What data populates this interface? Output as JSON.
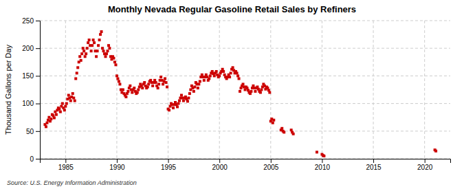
{
  "chart_data": {
    "type": "scatter",
    "title": "Monthly Nevada Regular Gasoline Retail Sales by Refiners",
    "ylabel": "Thousand Gallons per Day",
    "annotations": [
      "Source: U.S. Energy Information Administration"
    ],
    "color": "#cc0000",
    "marker": "square",
    "grid": true,
    "xlim": [
      1982.5,
      2022.5
    ],
    "ylim": [
      0,
      250
    ],
    "xticks": [
      1985,
      1990,
      1995,
      2000,
      2005,
      2010,
      2015,
      2020
    ],
    "yticks": [
      0,
      50,
      100,
      150,
      200,
      250
    ],
    "x": [
      1983.0,
      1983.1,
      1983.2,
      1983.3,
      1983.4,
      1983.5,
      1983.6,
      1983.7,
      1983.8,
      1983.9,
      1984.0,
      1984.1,
      1984.2,
      1984.3,
      1984.4,
      1984.5,
      1984.6,
      1984.7,
      1984.8,
      1984.9,
      1985.0,
      1985.1,
      1985.2,
      1985.3,
      1985.4,
      1985.5,
      1985.6,
      1985.7,
      1985.8,
      1985.9,
      1986.0,
      1986.1,
      1986.2,
      1986.3,
      1986.4,
      1986.5,
      1986.6,
      1986.7,
      1986.8,
      1986.9,
      1987.0,
      1987.1,
      1987.2,
      1987.3,
      1987.4,
      1987.5,
      1987.6,
      1987.7,
      1987.8,
      1987.9,
      1988.0,
      1988.1,
      1988.2,
      1988.3,
      1988.4,
      1988.5,
      1988.6,
      1988.7,
      1988.8,
      1988.9,
      1989.0,
      1989.1,
      1989.2,
      1989.3,
      1989.4,
      1989.5,
      1989.6,
      1989.7,
      1989.8,
      1989.9,
      1990.0,
      1990.1,
      1990.2,
      1990.3,
      1990.4,
      1990.5,
      1990.6,
      1990.7,
      1990.8,
      1990.9,
      1991.0,
      1991.1,
      1991.2,
      1991.3,
      1991.4,
      1991.5,
      1991.6,
      1991.7,
      1991.8,
      1991.9,
      1992.0,
      1992.1,
      1992.2,
      1992.3,
      1992.4,
      1992.5,
      1992.6,
      1992.7,
      1992.8,
      1992.9,
      1993.0,
      1993.1,
      1993.2,
      1993.3,
      1993.4,
      1993.5,
      1993.6,
      1993.7,
      1993.8,
      1993.9,
      1994.0,
      1994.1,
      1994.2,
      1994.3,
      1994.4,
      1994.5,
      1994.6,
      1994.7,
      1994.8,
      1994.9,
      1995.0,
      1995.1,
      1995.2,
      1995.3,
      1995.4,
      1995.5,
      1995.6,
      1995.7,
      1995.8,
      1995.9,
      1996.0,
      1996.1,
      1996.2,
      1996.3,
      1996.4,
      1996.5,
      1996.6,
      1996.7,
      1996.8,
      1996.9,
      1997.0,
      1997.1,
      1997.2,
      1997.3,
      1997.4,
      1997.5,
      1997.6,
      1997.7,
      1997.8,
      1997.9,
      1998.0,
      1998.1,
      1998.2,
      1998.3,
      1998.4,
      1998.5,
      1998.6,
      1998.7,
      1998.8,
      1998.9,
      1999.0,
      1999.1,
      1999.2,
      1999.3,
      1999.4,
      1999.5,
      1999.6,
      1999.7,
      1999.8,
      1999.9,
      2000.0,
      2000.1,
      2000.2,
      2000.3,
      2000.4,
      2000.5,
      2000.6,
      2000.7,
      2000.8,
      2000.9,
      2001.0,
      2001.1,
      2001.2,
      2001.3,
      2001.4,
      2001.5,
      2001.6,
      2001.7,
      2001.8,
      2001.9,
      2002.0,
      2002.1,
      2002.2,
      2002.3,
      2002.4,
      2002.5,
      2002.6,
      2002.7,
      2002.8,
      2002.9,
      2003.0,
      2003.1,
      2003.2,
      2003.3,
      2003.4,
      2003.5,
      2003.6,
      2003.7,
      2003.8,
      2003.9,
      2004.0,
      2004.1,
      2004.2,
      2004.3,
      2004.4,
      2004.5,
      2004.6,
      2004.7,
      2004.8,
      2004.9,
      2005.0,
      2005.1,
      2005.2,
      2005.3,
      2006.0,
      2006.1,
      2006.2,
      2006.3,
      2007.0,
      2007.1,
      2007.2,
      2009.5,
      2010.0,
      2010.1,
      2010.2,
      2021.0,
      2021.1
    ],
    "values": [
      62,
      58,
      65,
      70,
      75,
      68,
      72,
      80,
      78,
      74,
      85,
      80,
      88,
      92,
      90,
      85,
      95,
      100,
      92,
      88,
      95,
      100,
      108,
      115,
      110,
      105,
      112,
      118,
      110,
      105,
      145,
      155,
      165,
      175,
      185,
      178,
      190,
      200,
      195,
      185,
      190,
      200,
      210,
      215,
      205,
      195,
      205,
      215,
      210,
      195,
      185,
      195,
      205,
      215,
      225,
      230,
      200,
      195,
      190,
      185,
      190,
      195,
      205,
      200,
      185,
      180,
      185,
      182,
      175,
      170,
      150,
      145,
      140,
      135,
      125,
      120,
      125,
      118,
      115,
      112,
      118,
      122,
      128,
      132,
      125,
      120,
      125,
      128,
      122,
      118,
      120,
      125,
      130,
      135,
      132,
      128,
      135,
      138,
      132,
      128,
      130,
      135,
      140,
      142,
      138,
      132,
      138,
      142,
      138,
      132,
      128,
      135,
      142,
      148,
      142,
      135,
      140,
      145,
      138,
      130,
      90,
      88,
      95,
      100,
      98,
      92,
      98,
      102,
      98,
      94,
      100,
      105,
      110,
      115,
      110,
      105,
      110,
      112,
      108,
      104,
      110,
      118,
      125,
      132,
      128,
      122,
      130,
      138,
      135,
      128,
      135,
      140,
      148,
      152,
      148,
      142,
      148,
      152,
      148,
      142,
      145,
      150,
      155,
      158,
      154,
      150,
      155,
      158,
      152,
      148,
      150,
      155,
      158,
      162,
      158,
      152,
      148,
      145,
      148,
      152,
      148,
      155,
      162,
      165,
      160,
      155,
      158,
      155,
      150,
      145,
      122,
      128,
      132,
      135,
      130,
      125,
      130,
      128,
      124,
      120,
      118,
      122,
      128,
      132,
      128,
      122,
      128,
      130,
      126,
      122,
      120,
      125,
      130,
      135,
      132,
      126,
      130,
      128,
      124,
      120,
      68,
      72,
      65,
      70,
      52,
      55,
      50,
      48,
      52,
      48,
      45,
      12,
      8,
      6,
      5,
      16,
      14
    ]
  }
}
